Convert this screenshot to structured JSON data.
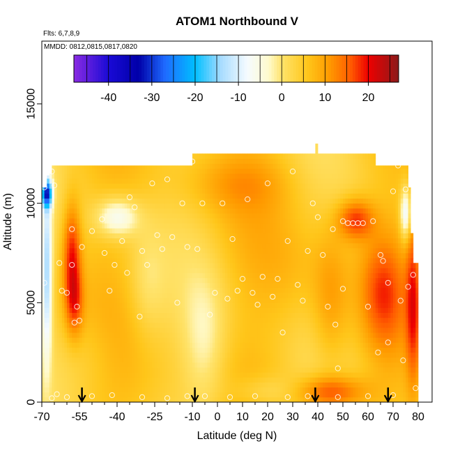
{
  "chart_data": {
    "type": "heatmap",
    "title": "ATOM1 Northbound V",
    "flights_label": "Flts: 6,7,8,9",
    "dates_label": "MMDD: 0812,0815,0817,0820",
    "xlabel": "Latitude (deg N)",
    "ylabel": "Altitude (m)",
    "xlim": [
      -70,
      85
    ],
    "ylim": [
      0,
      17500
    ],
    "x_ticks": [
      -70,
      -55,
      -40,
      -25,
      -10,
      0,
      10,
      20,
      30,
      40,
      50,
      60,
      70,
      80
    ],
    "x_minor_ticks": [
      -65,
      -60,
      -50,
      -45,
      -35,
      -30,
      -20,
      -15,
      -5,
      5,
      15,
      25,
      35,
      45,
      55,
      65,
      75
    ],
    "y_ticks": [
      0,
      5000,
      10000,
      15000
    ],
    "colorbar": {
      "min": -48,
      "max": 27,
      "ticks": [
        -40,
        -30,
        -20,
        -10,
        0,
        10,
        20
      ],
      "stops": [
        {
          "value": -48,
          "color": "#8a2be2"
        },
        {
          "value": -40,
          "color": "#1a0ad6"
        },
        {
          "value": -33,
          "color": "#0000a8"
        },
        {
          "value": -27,
          "color": "#1e6aff"
        },
        {
          "value": -20,
          "color": "#00bfff"
        },
        {
          "value": -14,
          "color": "#a8dcff"
        },
        {
          "value": -8,
          "color": "#f5fbff"
        },
        {
          "value": -3,
          "color": "#fffacd"
        },
        {
          "value": 0,
          "color": "#ffe36b"
        },
        {
          "value": 6,
          "color": "#ffc61a"
        },
        {
          "value": 11,
          "color": "#ff9a00"
        },
        {
          "value": 16,
          "color": "#ff5a00"
        },
        {
          "value": 20,
          "color": "#ee0000"
        },
        {
          "value": 27,
          "color": "#8b1a1a"
        }
      ]
    },
    "coverage": [
      {
        "x0": -70,
        "x1": -68,
        "y0": 0,
        "y1": 10800
      },
      {
        "x0": -68,
        "x1": -67,
        "y0": 0,
        "y1": 11400
      },
      {
        "x0": -67,
        "x1": -66,
        "y0": 0,
        "y1": 11500
      },
      {
        "x0": -66,
        "x1": -10,
        "y0": 0,
        "y1": 11900
      },
      {
        "x0": -10,
        "x1": 39,
        "y0": 0,
        "y1": 12500
      },
      {
        "x0": 39,
        "x1": 40,
        "y0": 0,
        "y1": 13000
      },
      {
        "x0": 40,
        "x1": 63,
        "y0": 0,
        "y1": 12500
      },
      {
        "x0": 63,
        "x1": 75,
        "y0": 0,
        "y1": 11900
      },
      {
        "x0": 75,
        "x1": 76,
        "y0": 0,
        "y1": 11900
      },
      {
        "x0": 76,
        "x1": 77,
        "y0": 0,
        "y1": 10800
      },
      {
        "x0": 77,
        "x1": 78,
        "y0": 0,
        "y1": 8500
      },
      {
        "x0": 78,
        "x1": 80,
        "y0": 0,
        "y1": 7000
      }
    ],
    "base_value": 5,
    "features": [
      {
        "x": -58,
        "y": 7500,
        "sx": 2.5,
        "sy": 1800,
        "amp": 14
      },
      {
        "x": -57,
        "y": 5000,
        "sx": 2.5,
        "sy": 1200,
        "amp": 10
      },
      {
        "x": -68,
        "y": 6500,
        "sx": 1.5,
        "sy": 3000,
        "amp": -18
      },
      {
        "x": -68,
        "y": 10500,
        "sx": 1.5,
        "sy": 500,
        "amp": -28
      },
      {
        "x": -40,
        "y": 9300,
        "sx": 6,
        "sy": 700,
        "amp": -12
      },
      {
        "x": -28,
        "y": 6000,
        "sx": 5,
        "sy": 2000,
        "amp": -4
      },
      {
        "x": -5,
        "y": 3000,
        "sx": 6,
        "sy": 2500,
        "amp": -6
      },
      {
        "x": 20,
        "y": 500,
        "sx": 10,
        "sy": 600,
        "amp": -5
      },
      {
        "x": 8,
        "y": 11000,
        "sx": 15,
        "sy": 1000,
        "amp": 4
      },
      {
        "x": 45,
        "y": 500,
        "sx": 10,
        "sy": 600,
        "amp": 13
      },
      {
        "x": 55,
        "y": 9200,
        "sx": 5,
        "sy": 700,
        "amp": 13
      },
      {
        "x": 66,
        "y": 5500,
        "sx": 6,
        "sy": 2000,
        "amp": 10
      },
      {
        "x": 78,
        "y": 5000,
        "sx": 2,
        "sy": 3000,
        "amp": 12
      },
      {
        "x": 75,
        "y": 9500,
        "sx": 1.5,
        "sy": 900,
        "amp": -15
      },
      {
        "x": 45,
        "y": 5000,
        "sx": 5,
        "sy": 2500,
        "amp": 6
      },
      {
        "x": 30,
        "y": 6500,
        "sx": 12,
        "sy": 2000,
        "amp": 2
      },
      {
        "x": -50,
        "y": 2500,
        "sx": 8,
        "sy": 1500,
        "amp": -2
      }
    ],
    "points": [
      [
        -69,
        10800
      ],
      [
        -69,
        6000
      ],
      [
        -66,
        11600
      ],
      [
        -65,
        10900
      ],
      [
        -63,
        7000
      ],
      [
        -64,
        400
      ],
      [
        -62,
        5600
      ],
      [
        -60,
        5500
      ],
      [
        -58,
        8700
      ],
      [
        -58,
        6900
      ],
      [
        -57,
        4000
      ],
      [
        -55,
        4100
      ],
      [
        -56,
        4800
      ],
      [
        -54,
        7800
      ],
      [
        -50,
        8600
      ],
      [
        -46,
        9200
      ],
      [
        -45,
        7500
      ],
      [
        -43,
        5600
      ],
      [
        -41,
        6900
      ],
      [
        -38,
        8100
      ],
      [
        -36,
        6500
      ],
      [
        -35,
        10300
      ],
      [
        -33,
        9800
      ],
      [
        -31,
        4300
      ],
      [
        -30,
        7600
      ],
      [
        -28,
        6900
      ],
      [
        -26,
        11000
      ],
      [
        -24,
        8400
      ],
      [
        -22,
        7700
      ],
      [
        -20,
        11200
      ],
      [
        -18,
        8300
      ],
      [
        -16,
        5000
      ],
      [
        -14,
        10000
      ],
      [
        -12,
        7800
      ],
      [
        -10,
        12100
      ],
      [
        -8,
        7700
      ],
      [
        -6,
        10000
      ],
      [
        -3,
        4400
      ],
      [
        -1,
        5500
      ],
      [
        2,
        10000
      ],
      [
        4,
        5200
      ],
      [
        6,
        8200
      ],
      [
        8,
        5600
      ],
      [
        10,
        6200
      ],
      [
        12,
        10200
      ],
      [
        14,
        5500
      ],
      [
        16,
        4900
      ],
      [
        18,
        6300
      ],
      [
        20,
        11000
      ],
      [
        22,
        5300
      ],
      [
        24,
        6200
      ],
      [
        26,
        3500
      ],
      [
        28,
        8100
      ],
      [
        30,
        11600
      ],
      [
        32,
        5900
      ],
      [
        34,
        5100
      ],
      [
        36,
        7600
      ],
      [
        38,
        10000
      ],
      [
        40,
        9300
      ],
      [
        42,
        7400
      ],
      [
        44,
        4800
      ],
      [
        46,
        8700
      ],
      [
        47,
        3900
      ],
      [
        48,
        1700
      ],
      [
        50,
        5700
      ],
      [
        50,
        9100
      ],
      [
        52,
        9000
      ],
      [
        54,
        9000
      ],
      [
        56,
        9000
      ],
      [
        58,
        9000
      ],
      [
        60,
        4800
      ],
      [
        62,
        9100
      ],
      [
        64,
        2500
      ],
      [
        65,
        7400
      ],
      [
        66,
        7100
      ],
      [
        68,
        6000
      ],
      [
        68,
        3000
      ],
      [
        70,
        10600
      ],
      [
        72,
        11900
      ],
      [
        73,
        5100
      ],
      [
        74,
        2100
      ],
      [
        75,
        10700
      ],
      [
        76,
        5800
      ],
      [
        78,
        6400
      ],
      [
        79,
        700
      ],
      [
        -66,
        200
      ],
      [
        -60,
        250
      ],
      [
        -50,
        300
      ],
      [
        -42,
        350
      ],
      [
        -30,
        250
      ],
      [
        -20,
        200
      ],
      [
        -12,
        300
      ],
      [
        -5,
        300
      ],
      [
        5,
        250
      ],
      [
        15,
        300
      ],
      [
        28,
        250
      ],
      [
        36,
        300
      ],
      [
        48,
        250
      ],
      [
        60,
        300
      ],
      [
        70,
        350
      ]
    ],
    "flight_arrows": [
      -54,
      -9,
      39,
      68
    ]
  }
}
